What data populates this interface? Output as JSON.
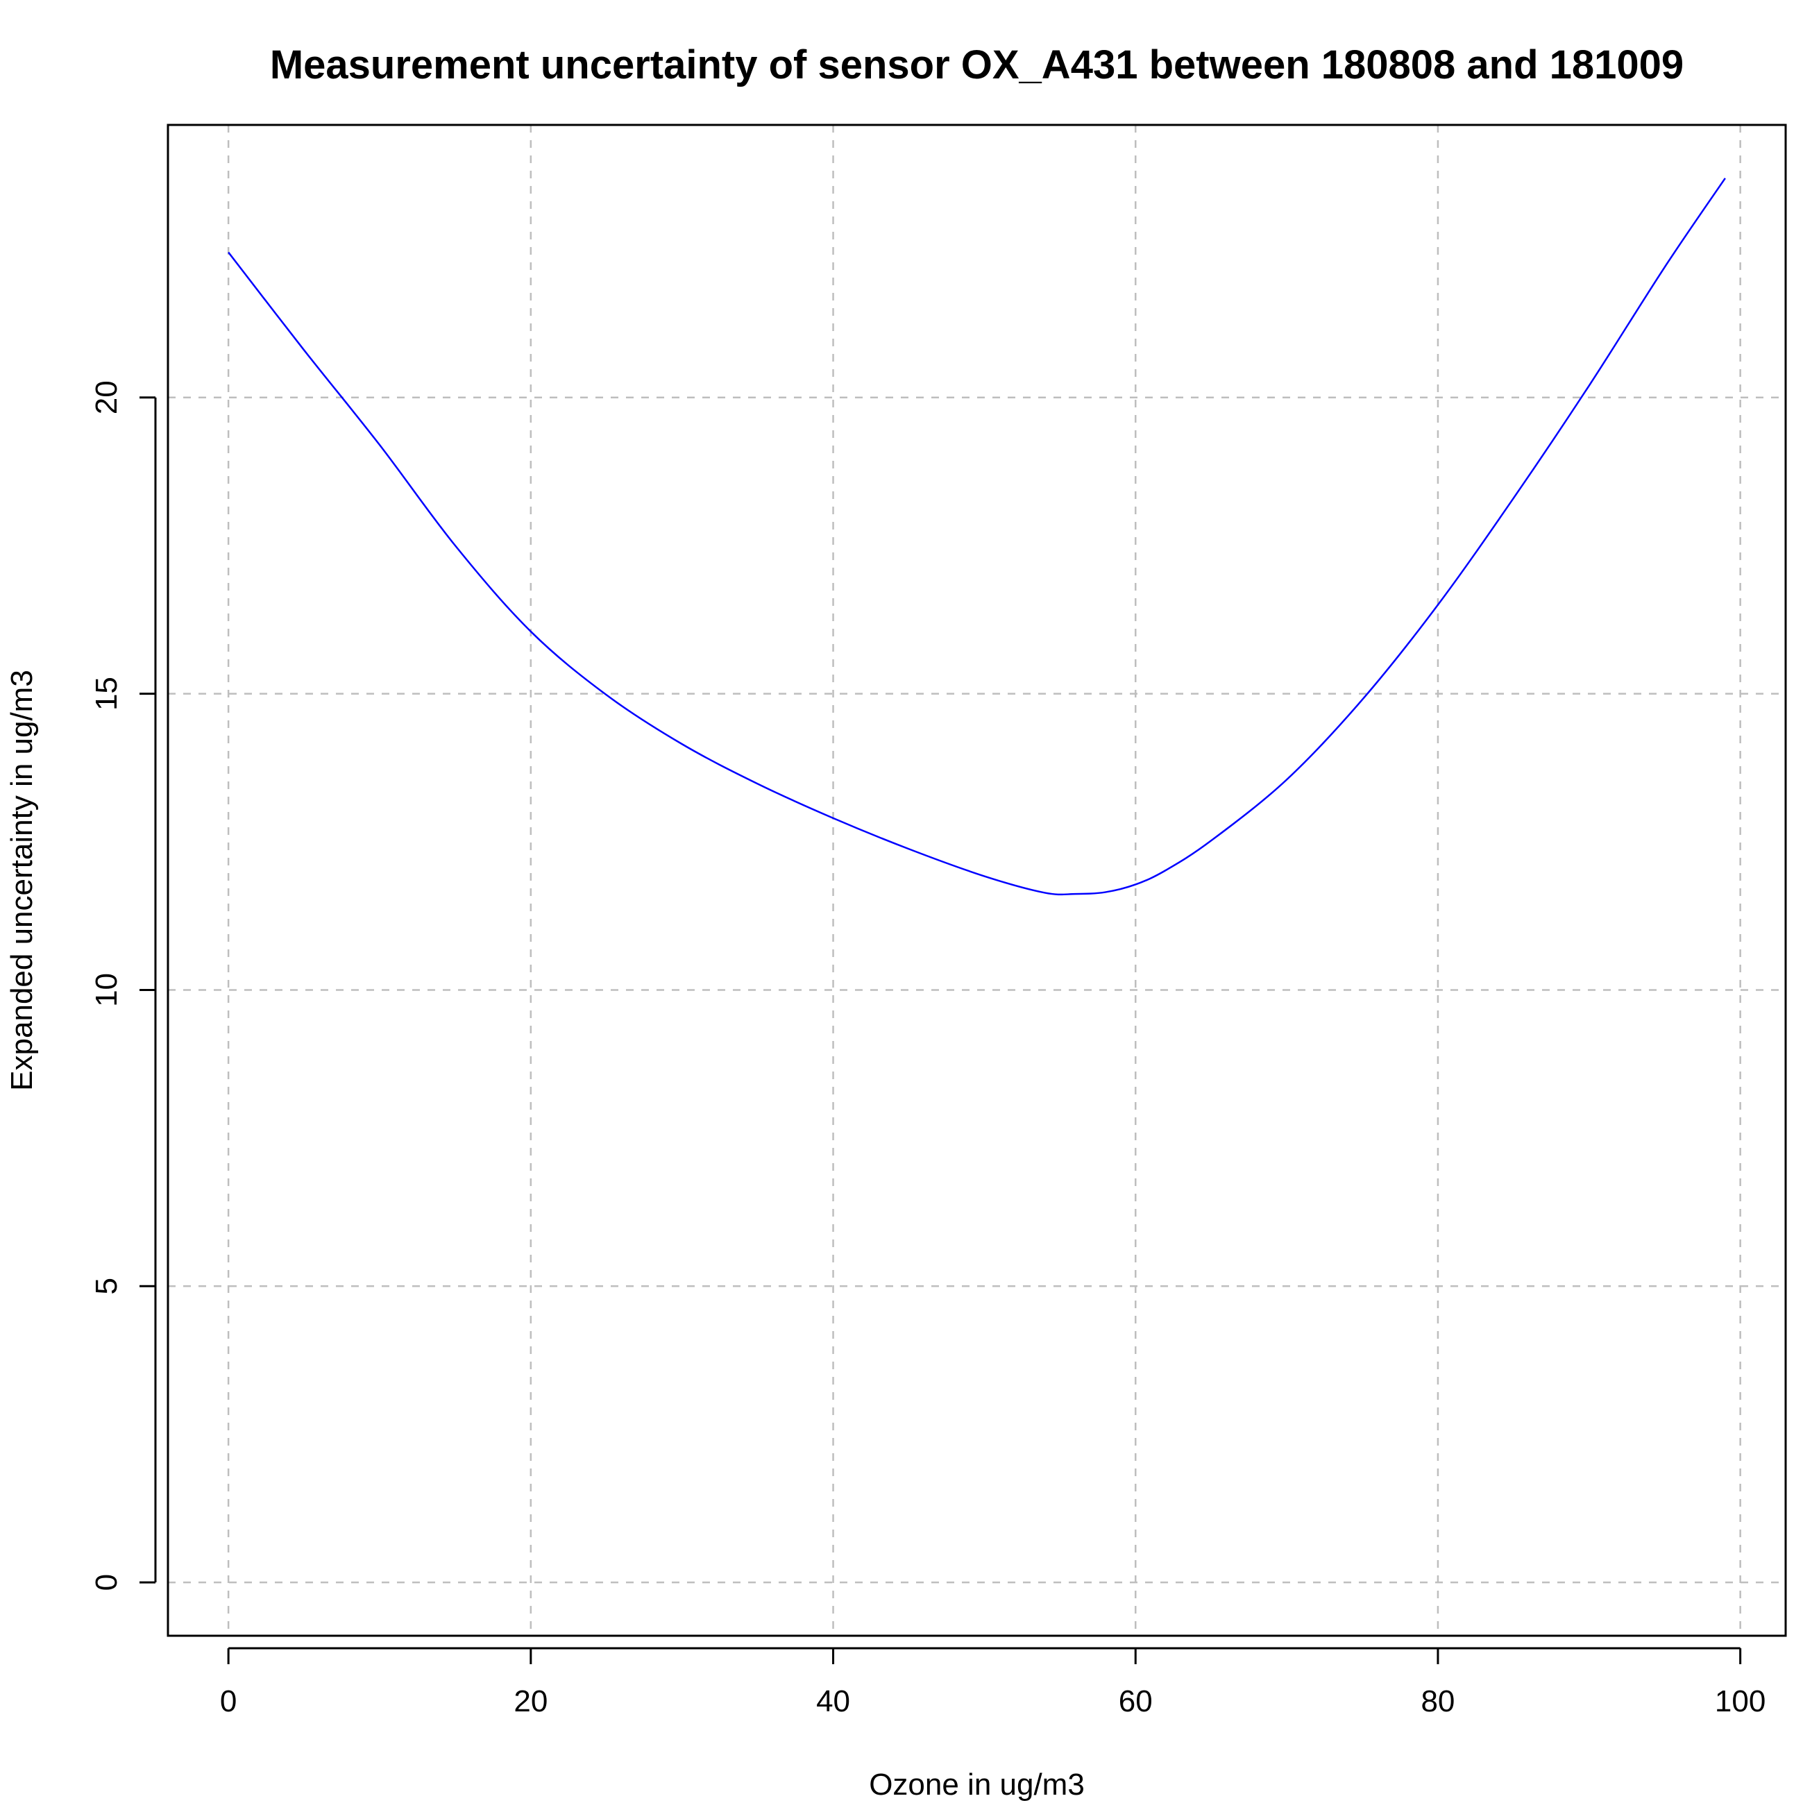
{
  "chart_data": {
    "type": "line",
    "title": "Measurement uncertainty of sensor OX_A431 between 180808 and 181009",
    "xlabel": "Ozone in ug/m3",
    "ylabel": "Expanded uncertainty in ug/m3",
    "xlim": [
      -4,
      103
    ],
    "ylim": [
      -0.9,
      24.6
    ],
    "x_ticks": [
      0,
      20,
      40,
      60,
      80,
      100
    ],
    "y_ticks": [
      0,
      5,
      10,
      15,
      20
    ],
    "x_tick_labels": [
      "0",
      "20",
      "40",
      "60",
      "80",
      "100"
    ],
    "y_tick_labels": [
      "0",
      "5",
      "10",
      "15",
      "20"
    ],
    "grid": true,
    "line_color": "#0000ff",
    "grid_color": "#bebebe",
    "series": [
      {
        "x": [
          0,
          5,
          10,
          15,
          20,
          25,
          30,
          35,
          40,
          45,
          50,
          54,
          56,
          58,
          60,
          62,
          65,
          70,
          75,
          80,
          85,
          90,
          95,
          99
        ],
        "y": [
          22.45,
          20.8,
          19.2,
          17.5,
          16.05,
          14.98,
          14.15,
          13.48,
          12.9,
          12.38,
          11.92,
          11.64,
          11.62,
          11.65,
          11.78,
          12.02,
          12.52,
          13.55,
          14.9,
          16.5,
          18.3,
          20.2,
          22.2,
          23.7
        ]
      }
    ]
  }
}
